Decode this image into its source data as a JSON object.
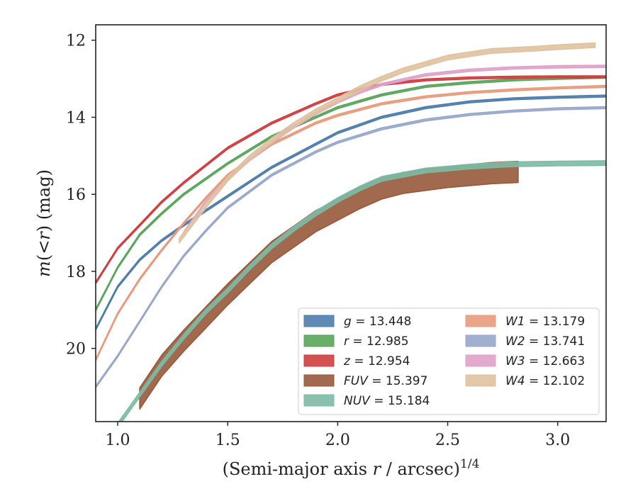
{
  "chart_data": {
    "type": "line",
    "xlabel_prefix": "(Semi-major axis ",
    "xlabel_var": "r",
    "xlabel_suffix": " / arcsec)",
    "xlabel_exp": "1/4",
    "ylabel_prefix": "m(<",
    "ylabel_var": "r",
    "ylabel_suffix": ") (mag)",
    "xlim": [
      0.9,
      3.22
    ],
    "ylim": [
      21.9,
      11.6
    ],
    "y_inverted": true,
    "xticks": [
      1.0,
      1.5,
      2.0,
      2.5,
      3.0
    ],
    "xtick_labels": [
      "1.0",
      "1.5",
      "2.0",
      "2.5",
      "3.0"
    ],
    "yticks": [
      12,
      14,
      16,
      18,
      20
    ],
    "ytick_labels": [
      "12",
      "14",
      "16",
      "18",
      "20"
    ],
    "grid": false,
    "legend_position": "lower-right",
    "series": [
      {
        "name": "g",
        "legend": "= 13.448",
        "color": "#4c7dac",
        "band": 0.05,
        "x": [
          0.9,
          1.0,
          1.1,
          1.2,
          1.3,
          1.5,
          1.7,
          1.9,
          2.0,
          2.2,
          2.4,
          2.6,
          2.8,
          3.0,
          3.22
        ],
        "y": [
          19.5,
          18.4,
          17.7,
          17.2,
          16.8,
          16.05,
          15.3,
          14.7,
          14.4,
          14.0,
          13.75,
          13.6,
          13.52,
          13.48,
          13.45
        ]
      },
      {
        "name": "r",
        "legend": "= 12.985",
        "color": "#5aa55c",
        "band": 0.05,
        "x": [
          0.9,
          1.0,
          1.1,
          1.2,
          1.3,
          1.5,
          1.7,
          1.9,
          2.0,
          2.2,
          2.4,
          2.6,
          2.8,
          3.0,
          3.22
        ],
        "y": [
          19.0,
          17.9,
          17.05,
          16.5,
          16.0,
          15.2,
          14.5,
          14.0,
          13.75,
          13.42,
          13.2,
          13.1,
          13.03,
          12.99,
          12.96
        ]
      },
      {
        "name": "z",
        "legend": "= 12.954",
        "color": "#cf3e3e",
        "band": 0.05,
        "x": [
          0.9,
          1.0,
          1.1,
          1.2,
          1.3,
          1.5,
          1.7,
          1.9,
          2.0,
          2.2,
          2.4,
          2.6,
          2.8,
          3.0,
          3.22
        ],
        "y": [
          18.3,
          17.4,
          16.8,
          16.2,
          15.7,
          14.8,
          14.15,
          13.65,
          13.42,
          13.15,
          13.03,
          12.98,
          12.96,
          12.95,
          12.95
        ]
      },
      {
        "name": "FUV",
        "legend": "= 15.397",
        "color": "#97593a",
        "band": 0.55,
        "x": [
          1.1,
          1.2,
          1.3,
          1.4,
          1.5,
          1.6,
          1.7,
          1.8,
          1.9,
          2.0,
          2.1,
          2.2,
          2.3,
          2.5,
          2.7,
          2.82
        ],
        "y": [
          21.3,
          20.45,
          19.8,
          19.2,
          18.6,
          18.05,
          17.5,
          17.1,
          16.7,
          16.4,
          16.1,
          15.85,
          15.7,
          15.55,
          15.45,
          15.42
        ]
      },
      {
        "name": "NUV",
        "legend": "= 15.184",
        "color": "#7dbaa5",
        "band": 0.12,
        "x": [
          0.9,
          1.0,
          1.1,
          1.2,
          1.3,
          1.4,
          1.5,
          1.6,
          1.7,
          1.8,
          1.9,
          2.0,
          2.1,
          2.2,
          2.4,
          2.6,
          2.8,
          3.0,
          3.22
        ],
        "y": [
          22.5,
          22.0,
          21.2,
          20.4,
          19.7,
          19.05,
          18.5,
          17.9,
          17.35,
          16.9,
          16.5,
          16.15,
          15.85,
          15.6,
          15.38,
          15.28,
          15.22,
          15.2,
          15.19
        ]
      },
      {
        "name": "W1",
        "legend": "= 13.179",
        "color": "#e89a7c",
        "band": 0.05,
        "x": [
          0.9,
          1.0,
          1.1,
          1.2,
          1.3,
          1.4,
          1.5,
          1.7,
          1.9,
          2.0,
          2.2,
          2.4,
          2.6,
          2.8,
          3.0,
          3.22
        ],
        "y": [
          20.3,
          19.1,
          18.2,
          17.45,
          16.75,
          16.1,
          15.5,
          14.7,
          14.15,
          13.95,
          13.65,
          13.47,
          13.36,
          13.29,
          13.24,
          13.2
        ]
      },
      {
        "name": "W2",
        "legend": "= 13.741",
        "color": "#98a7cb",
        "band": 0.05,
        "x": [
          0.9,
          1.0,
          1.1,
          1.2,
          1.3,
          1.4,
          1.5,
          1.7,
          1.9,
          2.0,
          2.2,
          2.4,
          2.6,
          2.8,
          3.0,
          3.22
        ],
        "y": [
          21.0,
          20.2,
          19.3,
          18.4,
          17.6,
          16.95,
          16.35,
          15.5,
          14.9,
          14.65,
          14.3,
          14.07,
          13.93,
          13.84,
          13.78,
          13.75
        ]
      },
      {
        "name": "W3",
        "legend": "= 12.663",
        "color": "#e0a1c8",
        "band": 0.06,
        "x": [
          1.3,
          1.4,
          1.5,
          1.6,
          1.7,
          1.8,
          1.9,
          2.0,
          2.1,
          2.2,
          2.4,
          2.6,
          2.8,
          3.0,
          3.22
        ],
        "y": [
          17.0,
          16.2,
          15.6,
          15.1,
          14.65,
          14.25,
          13.9,
          13.6,
          13.35,
          13.15,
          12.9,
          12.78,
          12.72,
          12.69,
          12.68
        ]
      },
      {
        "name": "W4",
        "legend": "= 12.102",
        "color": "#dfc2a0",
        "band": 0.12,
        "x": [
          1.28,
          1.4,
          1.5,
          1.6,
          1.7,
          1.8,
          1.9,
          2.0,
          2.1,
          2.2,
          2.3,
          2.5,
          2.7,
          2.9,
          3.0,
          3.17
        ],
        "y": [
          17.2,
          16.3,
          15.6,
          15.05,
          14.6,
          14.2,
          13.85,
          13.55,
          13.25,
          13.0,
          12.78,
          12.45,
          12.28,
          12.22,
          12.18,
          12.13
        ]
      }
    ]
  }
}
